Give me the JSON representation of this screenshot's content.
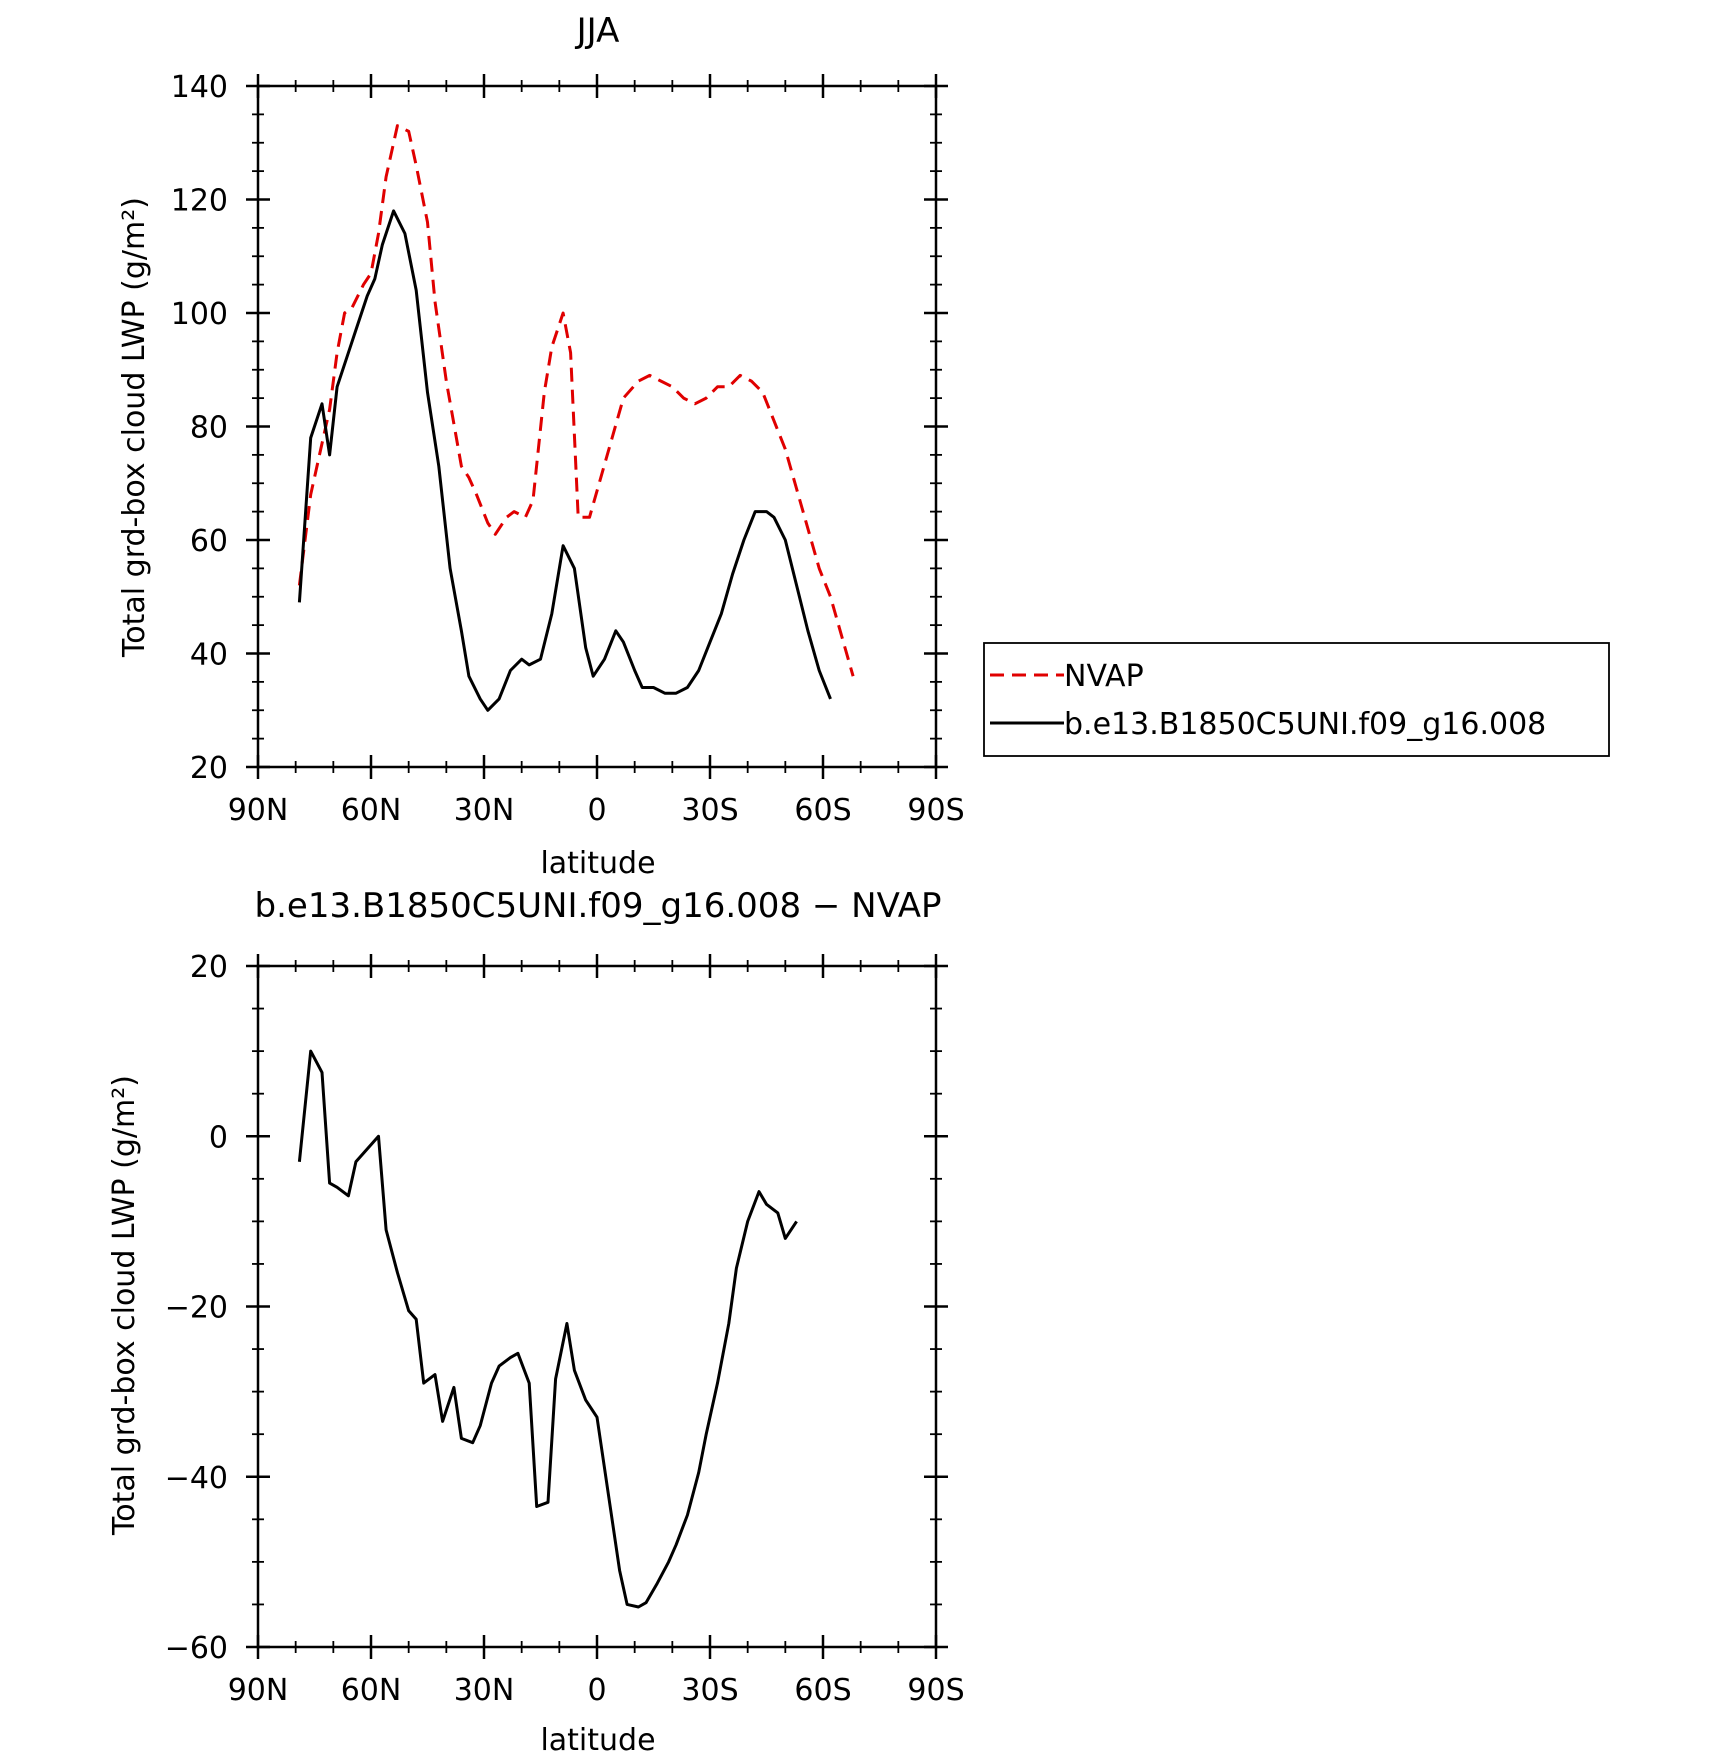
{
  "chart_data": [
    {
      "type": "line",
      "title": "JJA",
      "xlabel": "latitude",
      "ylabel": "Total grd-box cloud LWP (g/m²)",
      "xlim": [
        90,
        -90
      ],
      "ylim": [
        20,
        140
      ],
      "xticks": [
        90,
        60,
        30,
        0,
        -30,
        -60,
        -90
      ],
      "xtick_labels": [
        "90N",
        "60N",
        "30N",
        "0",
        "30S",
        "60S",
        "90S"
      ],
      "yticks": [
        20,
        40,
        60,
        80,
        100,
        120,
        140
      ],
      "ytick_labels": [
        "20",
        "40",
        "60",
        "80",
        "100",
        "120",
        "140"
      ],
      "legend_position": "right",
      "series": [
        {
          "name": "NVAP",
          "color": "#e00000",
          "dash": "dashed",
          "points": [
            [
              79,
              52
            ],
            [
              76,
              68
            ],
            [
              73,
              77
            ],
            [
              71,
              83
            ],
            [
              69,
              93
            ],
            [
              67,
              100
            ],
            [
              65,
              101
            ],
            [
              62,
              105
            ],
            [
              60,
              107
            ],
            [
              58,
              114
            ],
            [
              56,
              124
            ],
            [
              53,
              133
            ],
            [
              50,
              132
            ],
            [
              48,
              126
            ],
            [
              45,
              116
            ],
            [
              43,
              102
            ],
            [
              40,
              88
            ],
            [
              36,
              73
            ],
            [
              34,
              71
            ],
            [
              32,
              68
            ],
            [
              29,
              63
            ],
            [
              27,
              61
            ],
            [
              24,
              64
            ],
            [
              22,
              65
            ],
            [
              19,
              64
            ],
            [
              17,
              67
            ],
            [
              14,
              86
            ],
            [
              12,
              94
            ],
            [
              9,
              100
            ],
            [
              7,
              93
            ],
            [
              5,
              64
            ],
            [
              2,
              64
            ],
            [
              -1,
              71
            ],
            [
              -4,
              78
            ],
            [
              -7,
              85
            ],
            [
              -11,
              88
            ],
            [
              -14,
              89
            ],
            [
              -17,
              88
            ],
            [
              -20,
              87
            ],
            [
              -23,
              85
            ],
            [
              -26,
              84
            ],
            [
              -29,
              85
            ],
            [
              -32,
              87
            ],
            [
              -35,
              87
            ],
            [
              -38,
              89
            ],
            [
              -41,
              88
            ],
            [
              -44,
              86
            ],
            [
              -47,
              81
            ],
            [
              -50,
              76
            ],
            [
              -53,
              69
            ],
            [
              -56,
              62
            ],
            [
              -59,
              55
            ],
            [
              -62,
              50
            ],
            [
              -65,
              43
            ],
            [
              -68,
              36
            ]
          ]
        },
        {
          "name": "b.e13.B1850C5UNI.f09_g16.008",
          "color": "#000000",
          "dash": "solid",
          "points": [
            [
              79,
              49
            ],
            [
              76,
              78
            ],
            [
              73,
              84
            ],
            [
              71,
              75
            ],
            [
              69,
              87
            ],
            [
              66,
              93
            ],
            [
              64,
              97
            ],
            [
              61,
              103
            ],
            [
              59,
              106
            ],
            [
              57,
              112
            ],
            [
              54,
              118
            ],
            [
              51,
              114
            ],
            [
              48,
              104
            ],
            [
              45,
              86
            ],
            [
              42,
              73
            ],
            [
              39,
              55
            ],
            [
              36,
              44
            ],
            [
              34,
              36
            ],
            [
              31,
              32
            ],
            [
              29,
              30
            ],
            [
              26,
              32
            ],
            [
              23,
              37
            ],
            [
              20,
              39
            ],
            [
              18,
              38
            ],
            [
              15,
              39
            ],
            [
              12,
              47
            ],
            [
              9,
              59
            ],
            [
              6,
              55
            ],
            [
              3,
              41
            ],
            [
              1,
              36
            ],
            [
              -2,
              39
            ],
            [
              -5,
              44
            ],
            [
              -7,
              42
            ],
            [
              -10,
              37
            ],
            [
              -12,
              34
            ],
            [
              -15,
              34
            ],
            [
              -18,
              33
            ],
            [
              -21,
              33
            ],
            [
              -24,
              34
            ],
            [
              -27,
              37
            ],
            [
              -30,
              42
            ],
            [
              -33,
              47
            ],
            [
              -36,
              54
            ],
            [
              -39,
              60
            ],
            [
              -42,
              65
            ],
            [
              -45,
              65
            ],
            [
              -47,
              64
            ],
            [
              -50,
              60
            ],
            [
              -53,
              52
            ],
            [
              -56,
              44
            ],
            [
              -59,
              37
            ],
            [
              -62,
              32
            ]
          ]
        }
      ]
    },
    {
      "type": "line",
      "title": "b.e13.B1850C5UNI.f09_g16.008 − NVAP",
      "xlabel": "latitude",
      "ylabel": "Total grd-box cloud LWP (g/m²)",
      "xlim": [
        90,
        -90
      ],
      "ylim": [
        -60,
        20
      ],
      "xticks": [
        90,
        60,
        30,
        0,
        -30,
        -60,
        -90
      ],
      "xtick_labels": [
        "90N",
        "60N",
        "30N",
        "0",
        "30S",
        "60S",
        "90S"
      ],
      "yticks": [
        -60,
        -40,
        -20,
        0,
        20
      ],
      "ytick_labels": [
        "−60",
        "−40",
        "−20",
        "0",
        "20"
      ],
      "series": [
        {
          "color": "#000000",
          "dash": "solid",
          "points": [
            [
              79,
              -3
            ],
            [
              76,
              10
            ],
            [
              73,
              7.5
            ],
            [
              71,
              -5.5
            ],
            [
              69,
              -6
            ],
            [
              66,
              -7
            ],
            [
              64,
              -3
            ],
            [
              61,
              -1.5
            ],
            [
              58,
              0
            ],
            [
              56,
              -11
            ],
            [
              53,
              -16
            ],
            [
              50,
              -20.5
            ],
            [
              48,
              -21.5
            ],
            [
              46,
              -29
            ],
            [
              43,
              -28
            ],
            [
              41,
              -33.5
            ],
            [
              38,
              -29.5
            ],
            [
              36,
              -35.5
            ],
            [
              33,
              -36
            ],
            [
              31,
              -34
            ],
            [
              28,
              -29
            ],
            [
              26,
              -27
            ],
            [
              23,
              -26
            ],
            [
              21,
              -25.5
            ],
            [
              18,
              -29
            ],
            [
              16,
              -43.5
            ],
            [
              13,
              -43
            ],
            [
              11,
              -28.5
            ],
            [
              8,
              -22
            ],
            [
              6,
              -27.5
            ],
            [
              3,
              -31
            ],
            [
              0,
              -33
            ],
            [
              -3,
              -42
            ],
            [
              -6,
              -51
            ],
            [
              -8,
              -55
            ],
            [
              -11,
              -55.3
            ],
            [
              -13,
              -54.8
            ],
            [
              -16,
              -52.5
            ],
            [
              -19,
              -50
            ],
            [
              -21,
              -48
            ],
            [
              -24,
              -44.5
            ],
            [
              -27,
              -39.5
            ],
            [
              -29,
              -35
            ],
            [
              -32,
              -29
            ],
            [
              -35,
              -22
            ],
            [
              -37,
              -15.5
            ],
            [
              -40,
              -10
            ],
            [
              -43,
              -6.5
            ],
            [
              -45,
              -8
            ],
            [
              -48,
              -9
            ],
            [
              -50,
              -12
            ],
            [
              -53,
              -10
            ]
          ]
        }
      ]
    }
  ]
}
